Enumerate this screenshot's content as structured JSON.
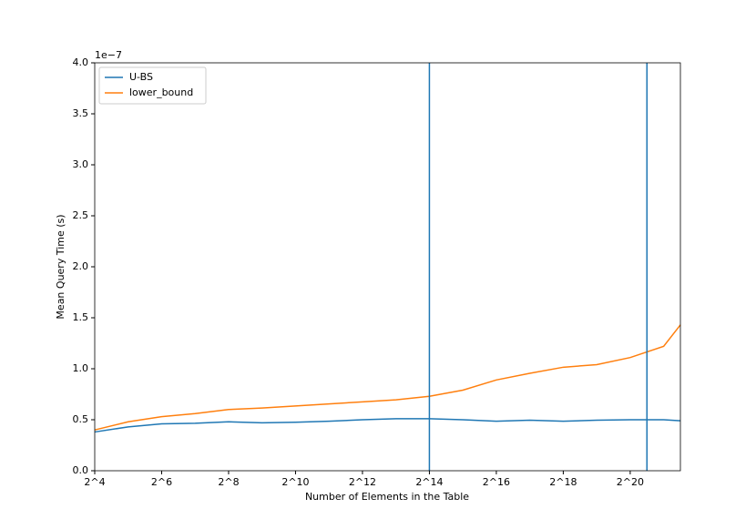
{
  "chart_data": {
    "type": "line",
    "xlabel": "Number of Elements in the Table",
    "ylabel": "Mean Query Time (s)",
    "y_offset_label": "1e−7",
    "x": [
      4,
      5,
      6,
      7,
      8,
      9,
      10,
      11,
      12,
      13,
      14,
      15,
      16,
      17,
      18,
      19,
      20,
      21,
      21.5
    ],
    "series": [
      {
        "name": "U-BS",
        "color": "#1f77b4",
        "values": [
          0.38,
          0.43,
          0.46,
          0.465,
          0.48,
          0.47,
          0.475,
          0.485,
          0.5,
          0.51,
          0.51,
          0.5,
          0.485,
          0.495,
          0.485,
          0.495,
          0.5,
          0.5,
          0.49
        ]
      },
      {
        "name": "lower_bound",
        "color": "#ff7f0e",
        "values": [
          0.4,
          0.48,
          0.53,
          0.56,
          0.6,
          0.615,
          0.635,
          0.655,
          0.675,
          0.695,
          0.73,
          0.79,
          0.89,
          0.955,
          1.015,
          1.04,
          1.11,
          1.22,
          1.43
        ]
      }
    ],
    "vlines": [
      14,
      20.5
    ],
    "vline_color": "#1f77b4",
    "xlim": [
      4,
      21.5
    ],
    "ylim": [
      0,
      4
    ],
    "xticks": [
      {
        "value": 4,
        "label": "2^4"
      },
      {
        "value": 6,
        "label": "2^6"
      },
      {
        "value": 8,
        "label": "2^8"
      },
      {
        "value": 10,
        "label": "2^10"
      },
      {
        "value": 12,
        "label": "2^12"
      },
      {
        "value": 14,
        "label": "2^14"
      },
      {
        "value": 16,
        "label": "2^16"
      },
      {
        "value": 18,
        "label": "2^18"
      },
      {
        "value": 20,
        "label": "2^20"
      }
    ],
    "yticks": [
      {
        "value": 0,
        "label": "0.0"
      },
      {
        "value": 0.5,
        "label": "0.5"
      },
      {
        "value": 1,
        "label": "1.0"
      },
      {
        "value": 1.5,
        "label": "1.5"
      },
      {
        "value": 2,
        "label": "2.0"
      },
      {
        "value": 2.5,
        "label": "2.5"
      },
      {
        "value": 3,
        "label": "3.0"
      },
      {
        "value": 3.5,
        "label": "3.5"
      },
      {
        "value": 4,
        "label": "4.0"
      }
    ],
    "legend": "upper left"
  }
}
